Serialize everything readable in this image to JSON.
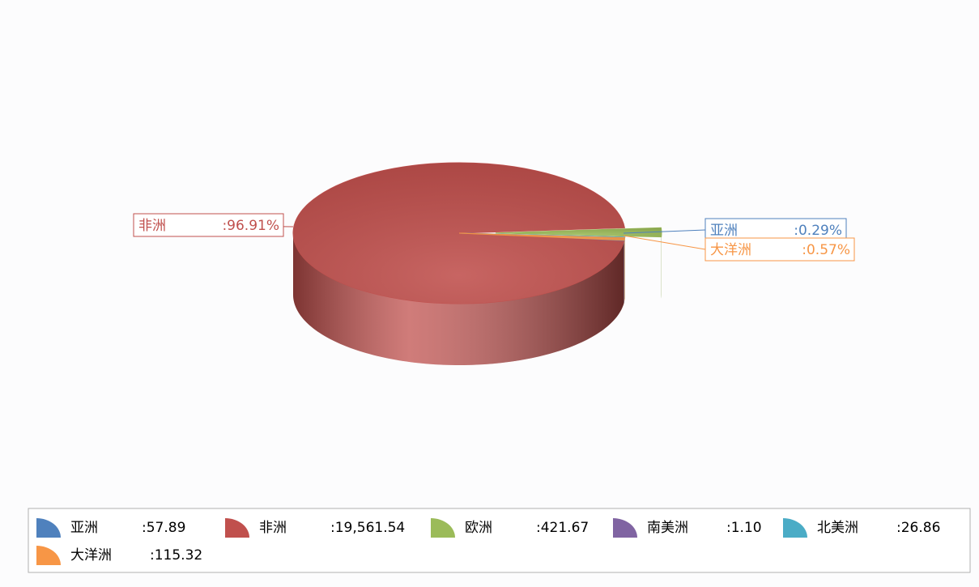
{
  "chart_data": {
    "type": "pie",
    "categories": [
      "亚洲",
      "非洲",
      "欧洲",
      "南美洲",
      "北美洲",
      "大洋洲"
    ],
    "values": [
      57.89,
      19561.54,
      421.67,
      1.1,
      26.86,
      115.32
    ],
    "value_labels": [
      ":57.89",
      ":19,561.54",
      ":421.67",
      ":1.10",
      ":26.86",
      ":115.32"
    ],
    "colors": [
      "#4f81bd",
      "#c0504d",
      "#9bbb59",
      "#8064a2",
      "#4bacc6",
      "#f79646"
    ],
    "exploded": [
      2
    ],
    "annotations": [
      {
        "category": "非洲",
        "label": ":96.91%"
      },
      {
        "category": "亚洲",
        "label": ":0.29%"
      },
      {
        "category": "大洋洲",
        "label": ":0.57%"
      }
    ],
    "legend": "bottom"
  }
}
